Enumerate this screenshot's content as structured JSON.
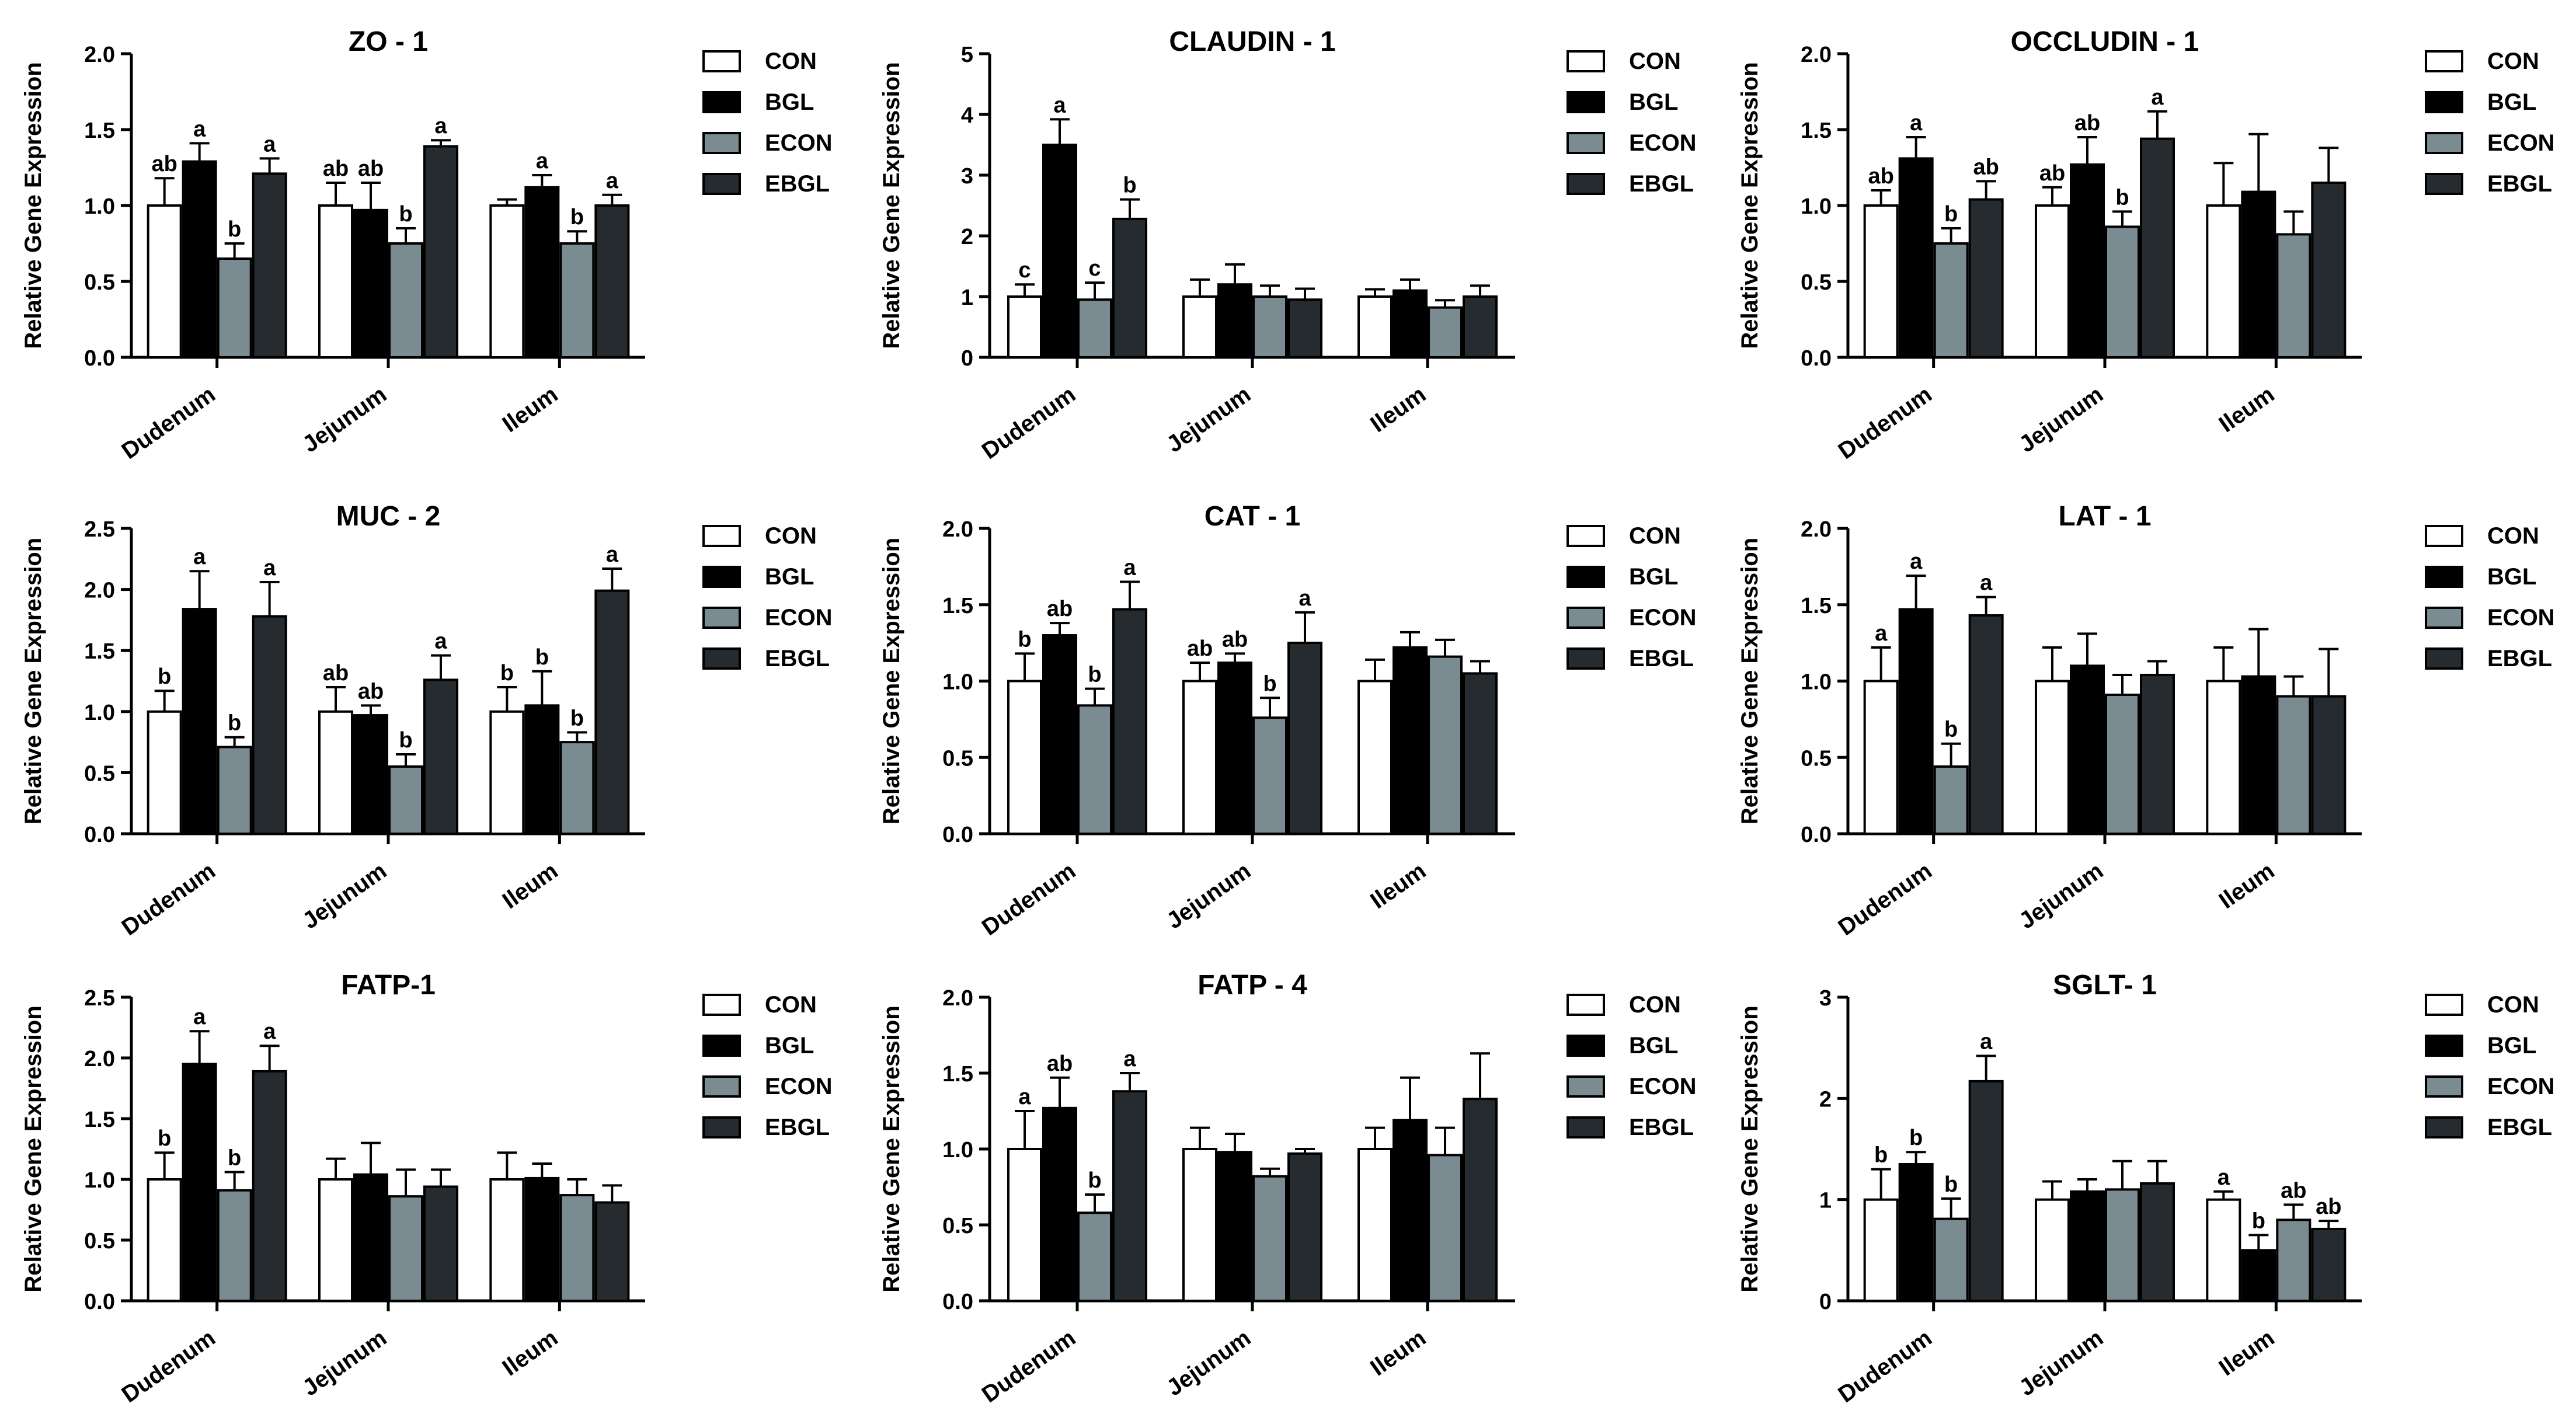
{
  "legend_labels": [
    "CON",
    "BGL",
    "ECON",
    "EBGL"
  ],
  "colors": {
    "CON": "#ffffff",
    "BGL": "#000000",
    "ECON": "#7a8b92",
    "EBGL": "#262b2f",
    "axis": "#000000"
  },
  "chart_data": [
    {
      "type": "bar",
      "title": "ZO - 1",
      "ylabel": "Relative Gene Expression",
      "categories": [
        "Dudenum",
        "Jejunum",
        "Ileum"
      ],
      "ylim": [
        0,
        2.0
      ],
      "yticks": [
        0,
        0.5,
        1.0,
        1.5,
        2.0
      ],
      "ytick_labels": [
        "0.0",
        "0.5",
        "1.0",
        "1.5",
        "2.0"
      ],
      "series": [
        {
          "name": "CON",
          "values": [
            1.0,
            1.0,
            1.0
          ],
          "errors": [
            0.18,
            0.15,
            0.04
          ],
          "letters": [
            "ab",
            "ab",
            ""
          ]
        },
        {
          "name": "BGL",
          "values": [
            1.29,
            0.97,
            1.12
          ],
          "errors": [
            0.12,
            0.18,
            0.08
          ],
          "letters": [
            "a",
            "ab",
            "a"
          ]
        },
        {
          "name": "ECON",
          "values": [
            0.65,
            0.75,
            0.75
          ],
          "errors": [
            0.1,
            0.1,
            0.08
          ],
          "letters": [
            "b",
            "b",
            "b"
          ]
        },
        {
          "name": "EBGL",
          "values": [
            1.21,
            1.39,
            1.0
          ],
          "errors": [
            0.1,
            0.04,
            0.07
          ],
          "letters": [
            "a",
            "a",
            "a"
          ]
        }
      ]
    },
    {
      "type": "bar",
      "title": "CLAUDIN - 1",
      "ylabel": "Relative Gene Expression",
      "categories": [
        "Dudenum",
        "Jejunum",
        "Ileum"
      ],
      "ylim": [
        0,
        5
      ],
      "yticks": [
        0,
        1,
        2,
        3,
        4,
        5
      ],
      "ytick_labels": [
        "0",
        "1",
        "2",
        "3",
        "4",
        "5"
      ],
      "series": [
        {
          "name": "CON",
          "values": [
            1.0,
            1.0,
            1.0
          ],
          "errors": [
            0.2,
            0.28,
            0.12
          ],
          "letters": [
            "c",
            "",
            ""
          ]
        },
        {
          "name": "BGL",
          "values": [
            3.5,
            1.2,
            1.1
          ],
          "errors": [
            0.42,
            0.33,
            0.18
          ],
          "letters": [
            "a",
            "",
            ""
          ]
        },
        {
          "name": "ECON",
          "values": [
            0.95,
            1.0,
            0.82
          ],
          "errors": [
            0.28,
            0.18,
            0.12
          ],
          "letters": [
            "c",
            "",
            ""
          ]
        },
        {
          "name": "EBGL",
          "values": [
            2.28,
            0.95,
            1.0
          ],
          "errors": [
            0.32,
            0.18,
            0.18
          ],
          "letters": [
            "b",
            "",
            ""
          ]
        }
      ]
    },
    {
      "type": "bar",
      "title": "OCCLUDIN - 1",
      "ylabel": "Relative Gene Expression",
      "categories": [
        "Dudenum",
        "Jejunum",
        "Ileum"
      ],
      "ylim": [
        0,
        2.0
      ],
      "yticks": [
        0,
        0.5,
        1.0,
        1.5,
        2.0
      ],
      "ytick_labels": [
        "0.0",
        "0.5",
        "1.0",
        "1.5",
        "2.0"
      ],
      "series": [
        {
          "name": "CON",
          "values": [
            1.0,
            1.0,
            1.0
          ],
          "errors": [
            0.1,
            0.12,
            0.28
          ],
          "letters": [
            "ab",
            "ab",
            ""
          ]
        },
        {
          "name": "BGL",
          "values": [
            1.31,
            1.27,
            1.09
          ],
          "errors": [
            0.14,
            0.18,
            0.38
          ],
          "letters": [
            "a",
            "ab",
            ""
          ]
        },
        {
          "name": "ECON",
          "values": [
            0.75,
            0.86,
            0.81
          ],
          "errors": [
            0.1,
            0.1,
            0.15
          ],
          "letters": [
            "b",
            "b",
            ""
          ]
        },
        {
          "name": "EBGL",
          "values": [
            1.04,
            1.44,
            1.15
          ],
          "errors": [
            0.12,
            0.18,
            0.23
          ],
          "letters": [
            "ab",
            "a",
            ""
          ]
        }
      ]
    },
    {
      "type": "bar",
      "title": "MUC - 2",
      "ylabel": "Relative Gene Expression",
      "categories": [
        "Dudenum",
        "Jejunum",
        "Ileum"
      ],
      "ylim": [
        0,
        2.5
      ],
      "yticks": [
        0,
        0.5,
        1.0,
        1.5,
        2.0,
        2.5
      ],
      "ytick_labels": [
        "0.0",
        "0.5",
        "1.0",
        "1.5",
        "2.0",
        "2.5"
      ],
      "series": [
        {
          "name": "CON",
          "values": [
            1.0,
            1.0,
            1.0
          ],
          "errors": [
            0.17,
            0.2,
            0.2
          ],
          "letters": [
            "b",
            "ab",
            "b"
          ]
        },
        {
          "name": "BGL",
          "values": [
            1.84,
            0.97,
            1.05
          ],
          "errors": [
            0.31,
            0.08,
            0.28
          ],
          "letters": [
            "a",
            "ab",
            "b"
          ]
        },
        {
          "name": "ECON",
          "values": [
            0.71,
            0.55,
            0.75
          ],
          "errors": [
            0.08,
            0.1,
            0.08
          ],
          "letters": [
            "b",
            "b",
            "b"
          ]
        },
        {
          "name": "EBGL",
          "values": [
            1.78,
            1.26,
            1.99
          ],
          "errors": [
            0.28,
            0.2,
            0.18
          ],
          "letters": [
            "a",
            "a",
            "a"
          ]
        }
      ]
    },
    {
      "type": "bar",
      "title": "CAT - 1",
      "ylabel": "Relative Gene Expression",
      "categories": [
        "Dudenum",
        "Jejunum",
        "Ileum"
      ],
      "ylim": [
        0,
        2.0
      ],
      "yticks": [
        0,
        0.5,
        1.0,
        1.5,
        2.0
      ],
      "ytick_labels": [
        "0.0",
        "0.5",
        "1.0",
        "1.5",
        "2.0"
      ],
      "series": [
        {
          "name": "CON",
          "values": [
            1.0,
            1.0,
            1.0
          ],
          "errors": [
            0.18,
            0.12,
            0.14
          ],
          "letters": [
            "b",
            "ab",
            ""
          ]
        },
        {
          "name": "BGL",
          "values": [
            1.3,
            1.12,
            1.22
          ],
          "errors": [
            0.08,
            0.06,
            0.1
          ],
          "letters": [
            "ab",
            "ab",
            ""
          ]
        },
        {
          "name": "ECON",
          "values": [
            0.84,
            0.76,
            1.16
          ],
          "errors": [
            0.11,
            0.13,
            0.11
          ],
          "letters": [
            "b",
            "b",
            ""
          ]
        },
        {
          "name": "EBGL",
          "values": [
            1.47,
            1.25,
            1.05
          ],
          "errors": [
            0.18,
            0.2,
            0.08
          ],
          "letters": [
            "a",
            "a",
            ""
          ]
        }
      ]
    },
    {
      "type": "bar",
      "title": "LAT - 1",
      "ylabel": "Relative Gene Expression",
      "categories": [
        "Dudenum",
        "Jejunum",
        "Ileum"
      ],
      "ylim": [
        0,
        2.0
      ],
      "yticks": [
        0,
        0.5,
        1.0,
        1.5,
        2.0
      ],
      "ytick_labels": [
        "0.0",
        "0.5",
        "1.0",
        "1.5",
        "2.0"
      ],
      "series": [
        {
          "name": "CON",
          "values": [
            1.0,
            1.0,
            1.0
          ],
          "errors": [
            0.22,
            0.22,
            0.22
          ],
          "letters": [
            "a",
            "",
            ""
          ]
        },
        {
          "name": "BGL",
          "values": [
            1.47,
            1.1,
            1.03
          ],
          "errors": [
            0.22,
            0.21,
            0.31
          ],
          "letters": [
            "a",
            "",
            ""
          ]
        },
        {
          "name": "ECON",
          "values": [
            0.44,
            0.91,
            0.9
          ],
          "errors": [
            0.15,
            0.13,
            0.13
          ],
          "letters": [
            "b",
            "",
            ""
          ]
        },
        {
          "name": "EBGL",
          "values": [
            1.43,
            1.04,
            0.9
          ],
          "errors": [
            0.12,
            0.09,
            0.31
          ],
          "letters": [
            "a",
            "",
            ""
          ]
        }
      ]
    },
    {
      "type": "bar",
      "title": "FATP-1",
      "ylabel": "Relative Gene Expression",
      "categories": [
        "Dudenum",
        "Jejunum",
        "Ileum"
      ],
      "ylim": [
        0,
        2.5
      ],
      "yticks": [
        0,
        0.5,
        1.0,
        1.5,
        2.0,
        2.5
      ],
      "ytick_labels": [
        "0.0",
        "0.5",
        "1.0",
        "1.5",
        "2.0",
        "2.5"
      ],
      "series": [
        {
          "name": "CON",
          "values": [
            1.0,
            1.0,
            1.0
          ],
          "errors": [
            0.22,
            0.17,
            0.22
          ],
          "letters": [
            "b",
            "",
            ""
          ]
        },
        {
          "name": "BGL",
          "values": [
            1.95,
            1.04,
            1.01
          ],
          "errors": [
            0.27,
            0.26,
            0.12
          ],
          "letters": [
            "a",
            "",
            ""
          ]
        },
        {
          "name": "ECON",
          "values": [
            0.91,
            0.86,
            0.87
          ],
          "errors": [
            0.15,
            0.22,
            0.13
          ],
          "letters": [
            "b",
            "",
            ""
          ]
        },
        {
          "name": "EBGL",
          "values": [
            1.89,
            0.94,
            0.81
          ],
          "errors": [
            0.21,
            0.14,
            0.14
          ],
          "letters": [
            "a",
            "",
            ""
          ]
        }
      ]
    },
    {
      "type": "bar",
      "title": "FATP - 4",
      "ylabel": "Relative Gene Expression",
      "categories": [
        "Dudenum",
        "Jejunum",
        "Ileum"
      ],
      "ylim": [
        0,
        2.0
      ],
      "yticks": [
        0,
        0.5,
        1.0,
        1.5,
        2.0
      ],
      "ytick_labels": [
        "0.0",
        "0.5",
        "1.0",
        "1.5",
        "2.0"
      ],
      "series": [
        {
          "name": "CON",
          "values": [
            1.0,
            1.0,
            1.0
          ],
          "errors": [
            0.25,
            0.14,
            0.14
          ],
          "letters": [
            "a",
            "",
            ""
          ]
        },
        {
          "name": "BGL",
          "values": [
            1.27,
            0.98,
            1.19
          ],
          "errors": [
            0.2,
            0.12,
            0.28
          ],
          "letters": [
            "ab",
            "",
            ""
          ]
        },
        {
          "name": "ECON",
          "values": [
            0.58,
            0.82,
            0.96
          ],
          "errors": [
            0.12,
            0.05,
            0.18
          ],
          "letters": [
            "b",
            "",
            ""
          ]
        },
        {
          "name": "EBGL",
          "values": [
            1.38,
            0.97,
            1.33
          ],
          "errors": [
            0.12,
            0.03,
            0.3
          ],
          "letters": [
            "a",
            "",
            ""
          ]
        }
      ]
    },
    {
      "type": "bar",
      "title": "SGLT- 1",
      "ylabel": "Relative Gene Expression",
      "categories": [
        "Dudenum",
        "Jejunum",
        "Ileum"
      ],
      "ylim": [
        0,
        3
      ],
      "yticks": [
        0,
        1,
        2,
        3
      ],
      "ytick_labels": [
        "0",
        "1",
        "2",
        "3"
      ],
      "series": [
        {
          "name": "CON",
          "values": [
            1.0,
            1.0,
            1.0
          ],
          "errors": [
            0.3,
            0.18,
            0.08
          ],
          "letters": [
            "b",
            "",
            "a"
          ]
        },
        {
          "name": "BGL",
          "values": [
            1.35,
            1.08,
            0.5
          ],
          "errors": [
            0.12,
            0.12,
            0.15
          ],
          "letters": [
            "b",
            "",
            "b"
          ]
        },
        {
          "name": "ECON",
          "values": [
            0.81,
            1.1,
            0.8
          ],
          "errors": [
            0.2,
            0.28,
            0.15
          ],
          "letters": [
            "b",
            "",
            "ab"
          ]
        },
        {
          "name": "EBGL",
          "values": [
            2.17,
            1.16,
            0.71
          ],
          "errors": [
            0.25,
            0.22,
            0.08
          ],
          "letters": [
            "a",
            "",
            "ab"
          ]
        }
      ]
    }
  ]
}
